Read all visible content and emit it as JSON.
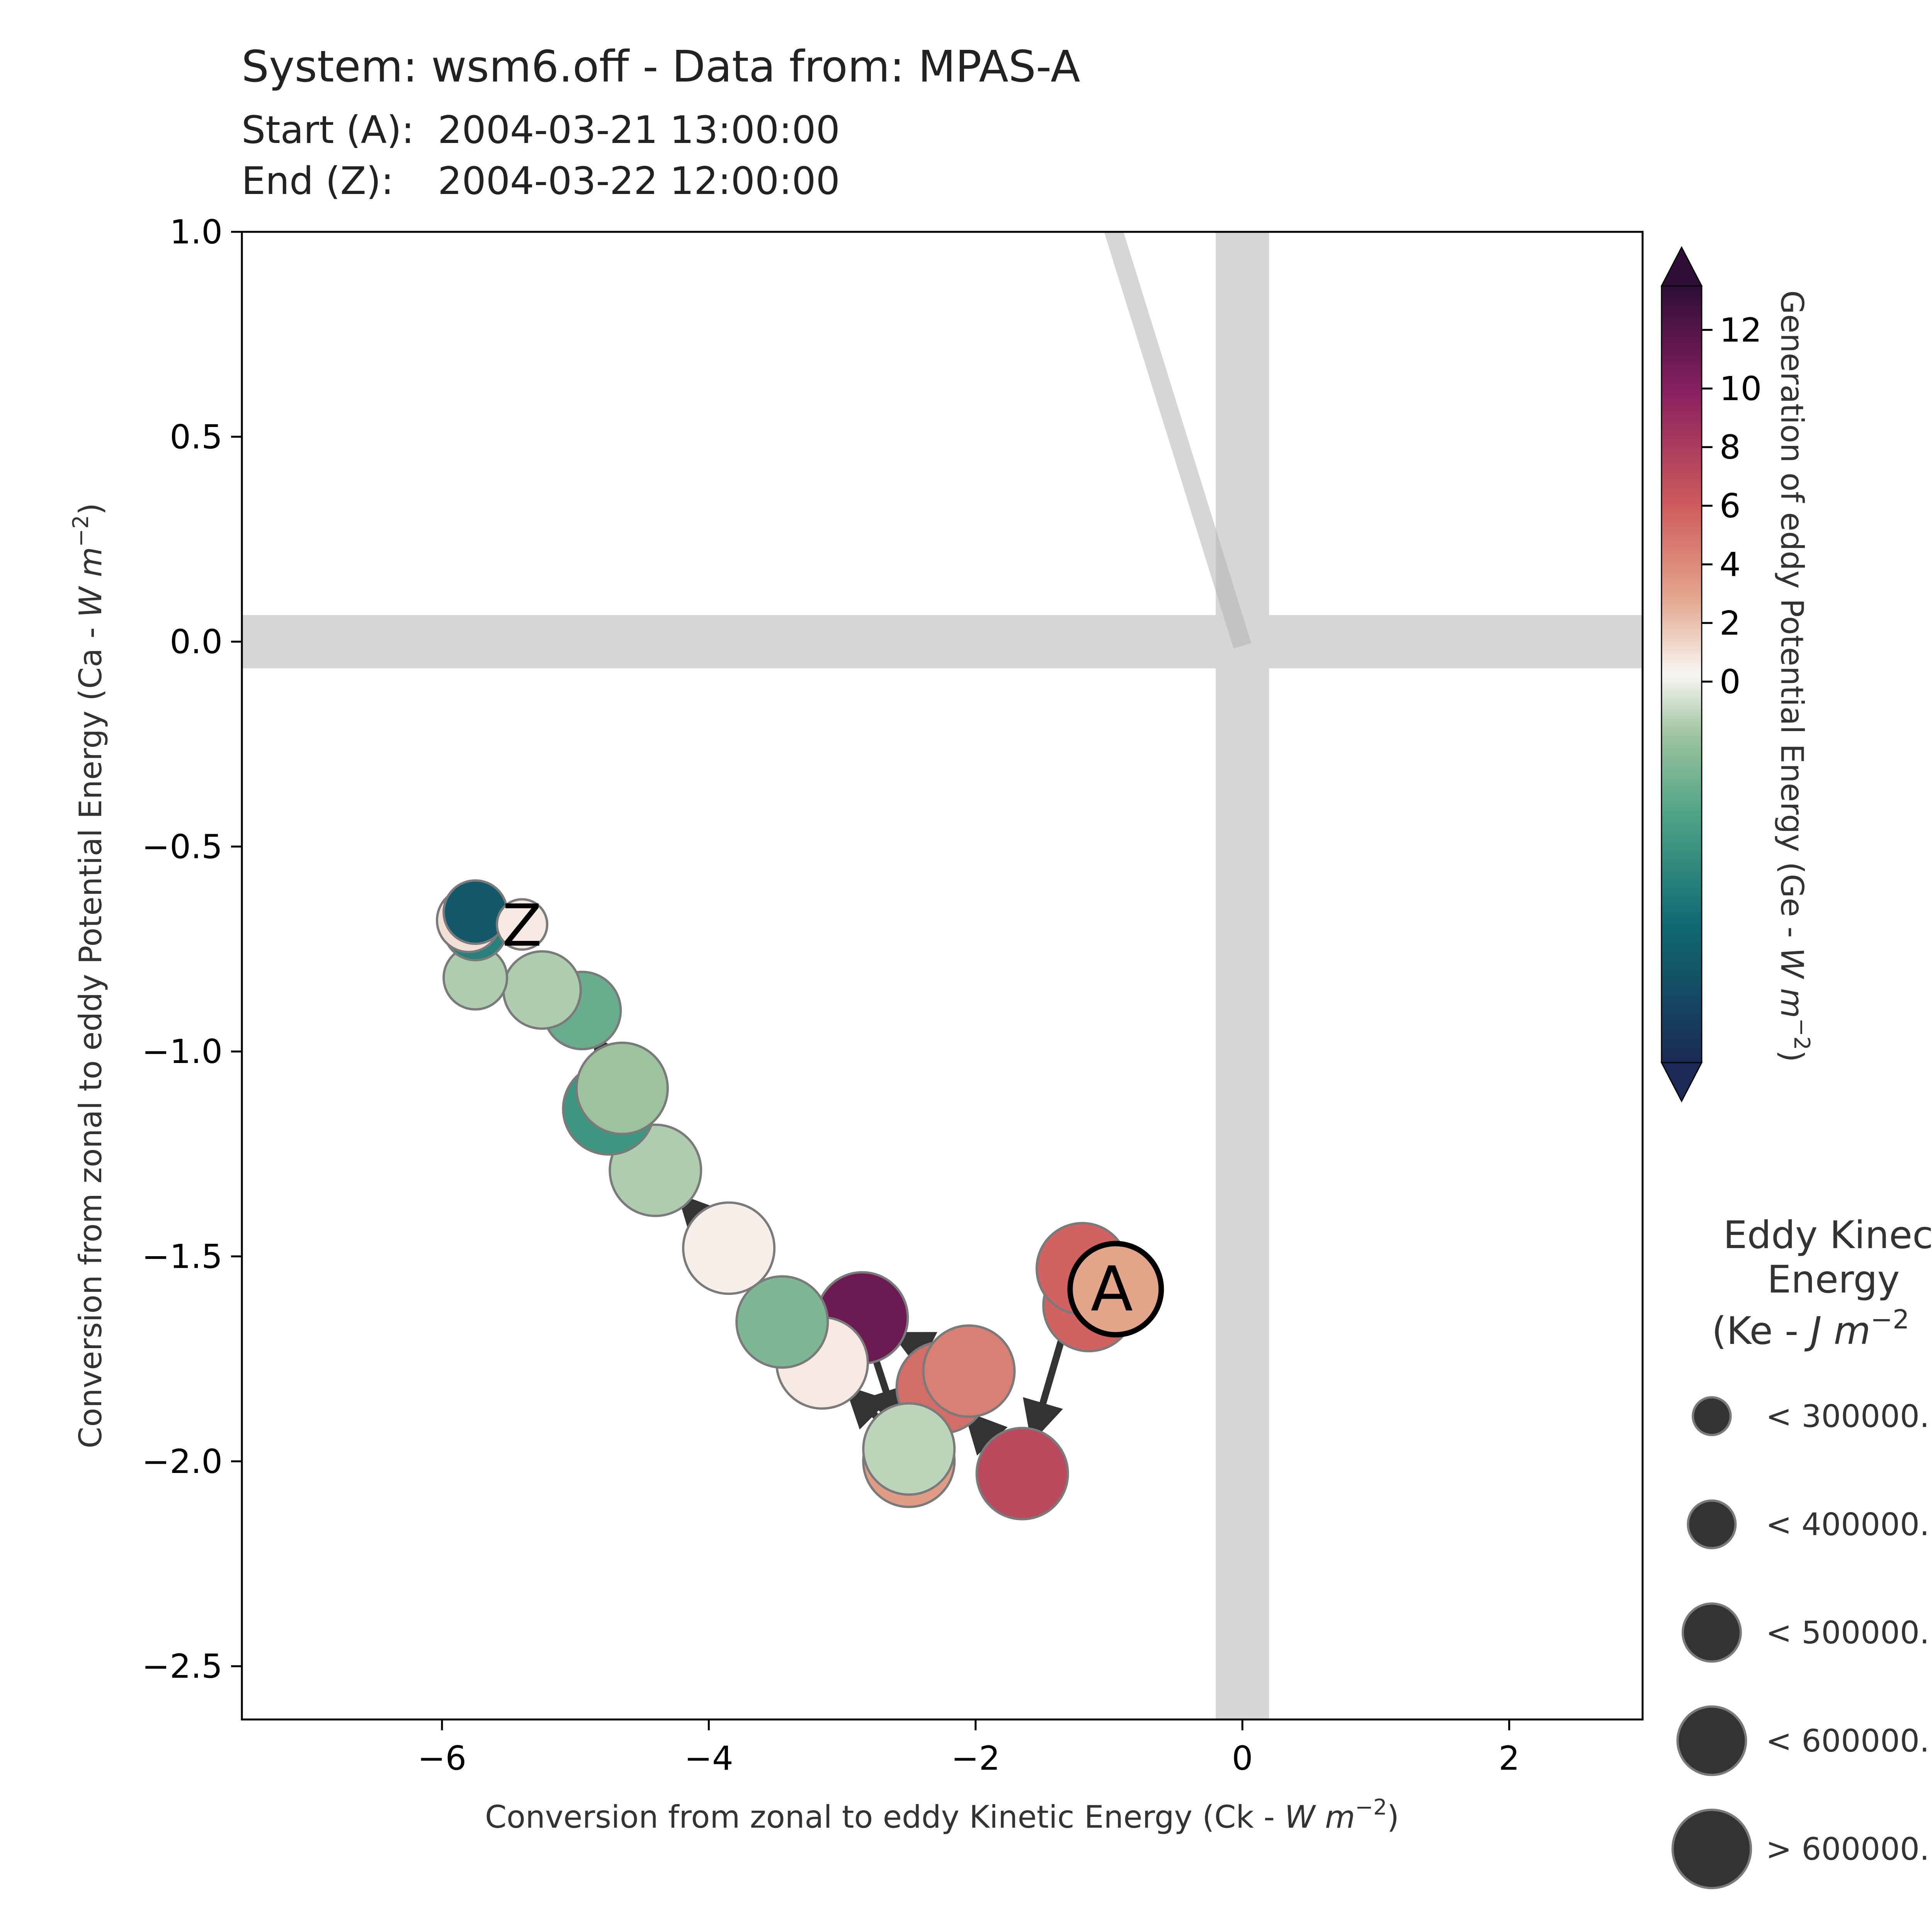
{
  "header": {
    "title": "System: wsm6.off - Data from: MPAS-A",
    "start_label": "Start (A):",
    "start_value": "2004-03-21 13:00:00",
    "end_label": "End (Z):",
    "end_value": "2004-03-22 12:00:00"
  },
  "chart_data": {
    "type": "scatter",
    "xlabel_main": "Conversion from zonal to eddy Kinetic Energy (Ck -  ",
    "xlabel_unit": "W m",
    "xlabel_exp": "−2",
    "ylabel_main": "Conversion from zonal to eddy Potential Energy (Ca -  ",
    "ylabel_unit": "W m",
    "ylabel_exp": "−2",
    "xlim": [
      -7.5,
      3.0
    ],
    "ylim": [
      -2.63,
      1.0
    ],
    "xticks": [
      -6,
      -4,
      -2,
      0,
      2
    ],
    "xtick_labels": [
      "−6",
      "−4",
      "−2",
      "0",
      "2"
    ],
    "yticks": [
      1.0,
      0.5,
      0.0,
      -0.5,
      -1.0,
      -1.5,
      -2.0,
      -2.5
    ],
    "ytick_labels": [
      "1.0",
      "0.5",
      "0.0",
      "−0.5",
      "−1.0",
      "−1.5",
      "−2.0",
      "−2.5"
    ],
    "zero_bands": true,
    "grid": false,
    "trend_line": {
      "x": [
        -1.0,
        0.0
      ],
      "y": [
        1.0,
        -0.01
      ]
    },
    "start_marker": "A",
    "end_marker": "Z",
    "series": [
      {
        "x": -0.95,
        "y": -1.58,
        "ge": 3.0,
        "ke_class": 4
      },
      {
        "x": -1.15,
        "y": -1.62,
        "ge": 6.5,
        "ke_class": 4
      },
      {
        "x": -1.2,
        "y": -1.53,
        "ge": 6.5,
        "ke_class": 4
      },
      {
        "x": -1.65,
        "y": -2.03,
        "ge": 8.0,
        "ke_class": 4
      },
      {
        "x": -2.25,
        "y": -1.82,
        "ge": 6.0,
        "ke_class": 4
      },
      {
        "x": -2.05,
        "y": -1.78,
        "ge": 5.0,
        "ke_class": 4
      },
      {
        "x": -2.85,
        "y": -1.65,
        "ge": 11.5,
        "ke_class": 4
      },
      {
        "x": -2.5,
        "y": -2.0,
        "ge": 3.5,
        "ke_class": 4
      },
      {
        "x": -2.5,
        "y": -1.97,
        "ge": -1.0,
        "ke_class": 4
      },
      {
        "x": -3.15,
        "y": -1.76,
        "ge": 0.5,
        "ke_class": 4
      },
      {
        "x": -3.45,
        "y": -1.66,
        "ge": -2.5,
        "ke_class": 4
      },
      {
        "x": -3.85,
        "y": -1.48,
        "ge": 0.3,
        "ke_class": 4
      },
      {
        "x": -4.4,
        "y": -1.29,
        "ge": -1.2,
        "ke_class": 4
      },
      {
        "x": -4.75,
        "y": -1.14,
        "ge": -5.0,
        "ke_class": 4
      },
      {
        "x": -4.65,
        "y": -1.09,
        "ge": -1.5,
        "ke_class": 4
      },
      {
        "x": -4.95,
        "y": -0.9,
        "ge": -3.2,
        "ke_class": 3
      },
      {
        "x": -5.25,
        "y": -0.85,
        "ge": -1.2,
        "ke_class": 3
      },
      {
        "x": -5.75,
        "y": -0.82,
        "ge": -1.2,
        "ke_class": 2
      },
      {
        "x": -5.75,
        "y": -0.7,
        "ge": -6.5,
        "ke_class": 2
      },
      {
        "x": -5.8,
        "y": -0.68,
        "ge": 0.8,
        "ke_class": 2
      },
      {
        "x": -5.75,
        "y": -0.66,
        "ge": -9.5,
        "ke_class": 2
      },
      {
        "x": -5.4,
        "y": -0.69,
        "ge": 0.5,
        "ke_class": 1
      }
    ],
    "colorbar": {
      "label": "Generation of eddy Potential Energy (Ge -  ",
      "label_unit": "W m",
      "label_exp": "−2",
      "ticks": [
        12,
        10,
        8,
        6,
        4,
        2,
        0
      ],
      "tick_labels": [
        "12",
        "10",
        "8",
        "6",
        "4",
        "2",
        "0"
      ],
      "range": [
        -13,
        13.5
      ],
      "extend": "both"
    },
    "size_legend": {
      "title_lines": [
        "Eddy Kineci",
        "Energy",
        "(Ke -  "
      ],
      "title_unit": "J m",
      "title_exp": "−2",
      "entries": [
        "< 300000.",
        "< 400000.",
        "< 500000.",
        "< 600000.",
        "> 600000."
      ]
    }
  },
  "colors": {
    "marker_edge": "#7a7a7a",
    "arrow": "#333333",
    "band": "#d6d6d6",
    "legend_marker": "#333333"
  }
}
